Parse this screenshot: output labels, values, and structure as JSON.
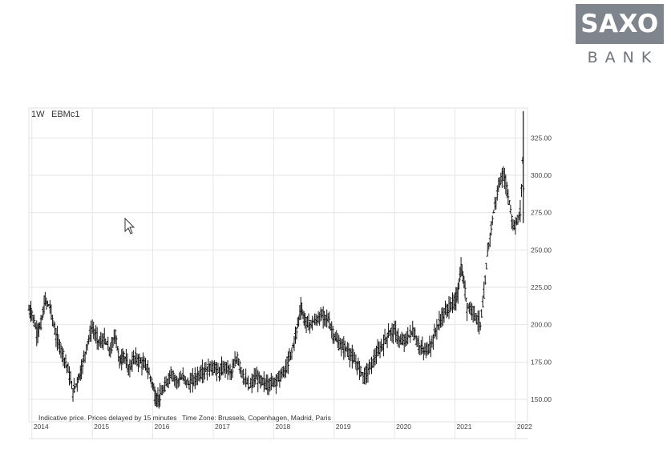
{
  "brand": {
    "name": "SAXO",
    "sub": "BANK"
  },
  "header": {
    "interval": "1W",
    "symbol": "EBMc1"
  },
  "footnotes": {
    "disclaimer": "Indicative price. Prices delayed by 15 minutes",
    "timezone": "Time Zone: Brussels, Copenhagen, Madrid, Paris"
  },
  "chart_data": {
    "type": "candlestick",
    "title": "",
    "xlabel": "",
    "ylabel": "",
    "x_ticks": [
      "2014",
      "2015",
      "2016",
      "2017",
      "2018",
      "2019",
      "2020",
      "2021",
      "2022"
    ],
    "y_ticks": [
      "150.00",
      "175.00",
      "200.00",
      "225.00",
      "250.00",
      "275.00",
      "300.00",
      "325.00"
    ],
    "ylim": [
      135,
      345
    ],
    "xlim": [
      2013.95,
      2022.2
    ],
    "grid": true,
    "series": [
      {
        "values": [
          [
            2013.95,
            210
          ],
          [
            2014.0,
            208
          ],
          [
            2014.08,
            195
          ],
          [
            2014.15,
            200
          ],
          [
            2014.22,
            216
          ],
          [
            2014.3,
            212
          ],
          [
            2014.4,
            192
          ],
          [
            2014.5,
            182
          ],
          [
            2014.6,
            170
          ],
          [
            2014.68,
            155
          ],
          [
            2014.75,
            162
          ],
          [
            2014.82,
            170
          ],
          [
            2014.92,
            188
          ],
          [
            2015.0,
            198
          ],
          [
            2015.06,
            192
          ],
          [
            2015.12,
            188
          ],
          [
            2015.2,
            190
          ],
          [
            2015.3,
            182
          ],
          [
            2015.38,
            194
          ],
          [
            2015.45,
            175
          ],
          [
            2015.52,
            180
          ],
          [
            2015.6,
            170
          ],
          [
            2015.7,
            178
          ],
          [
            2015.8,
            175
          ],
          [
            2015.9,
            172
          ],
          [
            2016.0,
            160
          ],
          [
            2016.05,
            150
          ],
          [
            2016.12,
            152
          ],
          [
            2016.2,
            158
          ],
          [
            2016.3,
            168
          ],
          [
            2016.4,
            162
          ],
          [
            2016.5,
            165
          ],
          [
            2016.6,
            160
          ],
          [
            2016.7,
            164
          ],
          [
            2016.8,
            168
          ],
          [
            2016.9,
            170
          ],
          [
            2017.0,
            172
          ],
          [
            2017.1,
            168
          ],
          [
            2017.2,
            172
          ],
          [
            2017.3,
            168
          ],
          [
            2017.4,
            178
          ],
          [
            2017.5,
            165
          ],
          [
            2017.6,
            158
          ],
          [
            2017.7,
            165
          ],
          [
            2017.8,
            162
          ],
          [
            2017.9,
            160
          ],
          [
            2018.0,
            162
          ],
          [
            2018.1,
            165
          ],
          [
            2018.2,
            170
          ],
          [
            2018.3,
            182
          ],
          [
            2018.38,
            196
          ],
          [
            2018.45,
            212
          ],
          [
            2018.52,
            202
          ],
          [
            2018.6,
            200
          ],
          [
            2018.7,
            203
          ],
          [
            2018.8,
            206
          ],
          [
            2018.9,
            204
          ],
          [
            2019.0,
            192
          ],
          [
            2019.1,
            186
          ],
          [
            2019.2,
            184
          ],
          [
            2019.3,
            178
          ],
          [
            2019.4,
            172
          ],
          [
            2019.5,
            165
          ],
          [
            2019.6,
            172
          ],
          [
            2019.7,
            180
          ],
          [
            2019.8,
            186
          ],
          [
            2019.9,
            194
          ],
          [
            2020.0,
            196
          ],
          [
            2020.1,
            188
          ],
          [
            2020.2,
            190
          ],
          [
            2020.3,
            196
          ],
          [
            2020.4,
            186
          ],
          [
            2020.5,
            182
          ],
          [
            2020.6,
            186
          ],
          [
            2020.7,
            198
          ],
          [
            2020.8,
            206
          ],
          [
            2020.9,
            212
          ],
          [
            2021.0,
            215
          ],
          [
            2021.05,
            222
          ],
          [
            2021.1,
            238
          ],
          [
            2021.15,
            228
          ],
          [
            2021.2,
            212
          ],
          [
            2021.3,
            210
          ],
          [
            2021.36,
            204
          ],
          [
            2021.42,
            200
          ],
          [
            2021.48,
            220
          ],
          [
            2021.54,
            248
          ],
          [
            2021.6,
            265
          ],
          [
            2021.66,
            280
          ],
          [
            2021.72,
            292
          ],
          [
            2021.78,
            300
          ],
          [
            2021.84,
            295
          ],
          [
            2021.9,
            282
          ],
          [
            2021.96,
            266
          ],
          [
            2022.02,
            268
          ],
          [
            2022.08,
            275
          ],
          [
            2022.12,
            310
          ],
          [
            2022.14,
            273
          ]
        ]
      }
    ]
  }
}
